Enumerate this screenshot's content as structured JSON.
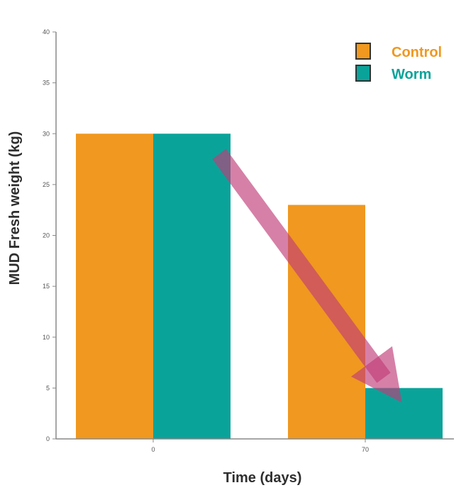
{
  "chart_data": {
    "type": "bar",
    "categories": [
      "0",
      "70"
    ],
    "series": [
      {
        "name": "Control",
        "values": [
          30,
          23
        ],
        "color": "#f0981f"
      },
      {
        "name": "Worm",
        "values": [
          30,
          5
        ],
        "color": "#0aa39a"
      }
    ],
    "xlabel": "Time (days)",
    "ylabel": "MUD Fresh weight (kg)",
    "ylim": [
      0,
      40
    ],
    "yticks": [
      0,
      5,
      10,
      15,
      20,
      25,
      30,
      35,
      40
    ],
    "ytick_labels": [
      "0",
      "5",
      "10",
      "15",
      "20",
      "25",
      "30",
      "35",
      "40"
    ],
    "grid": false,
    "legend_position": "top-right",
    "annotations": [
      {
        "type": "arrow",
        "from": {
          "category": "0",
          "series": "Worm",
          "value": 28
        },
        "to": {
          "category": "70",
          "series": "Worm",
          "value": 6
        },
        "color": "#c03c78"
      }
    ]
  }
}
